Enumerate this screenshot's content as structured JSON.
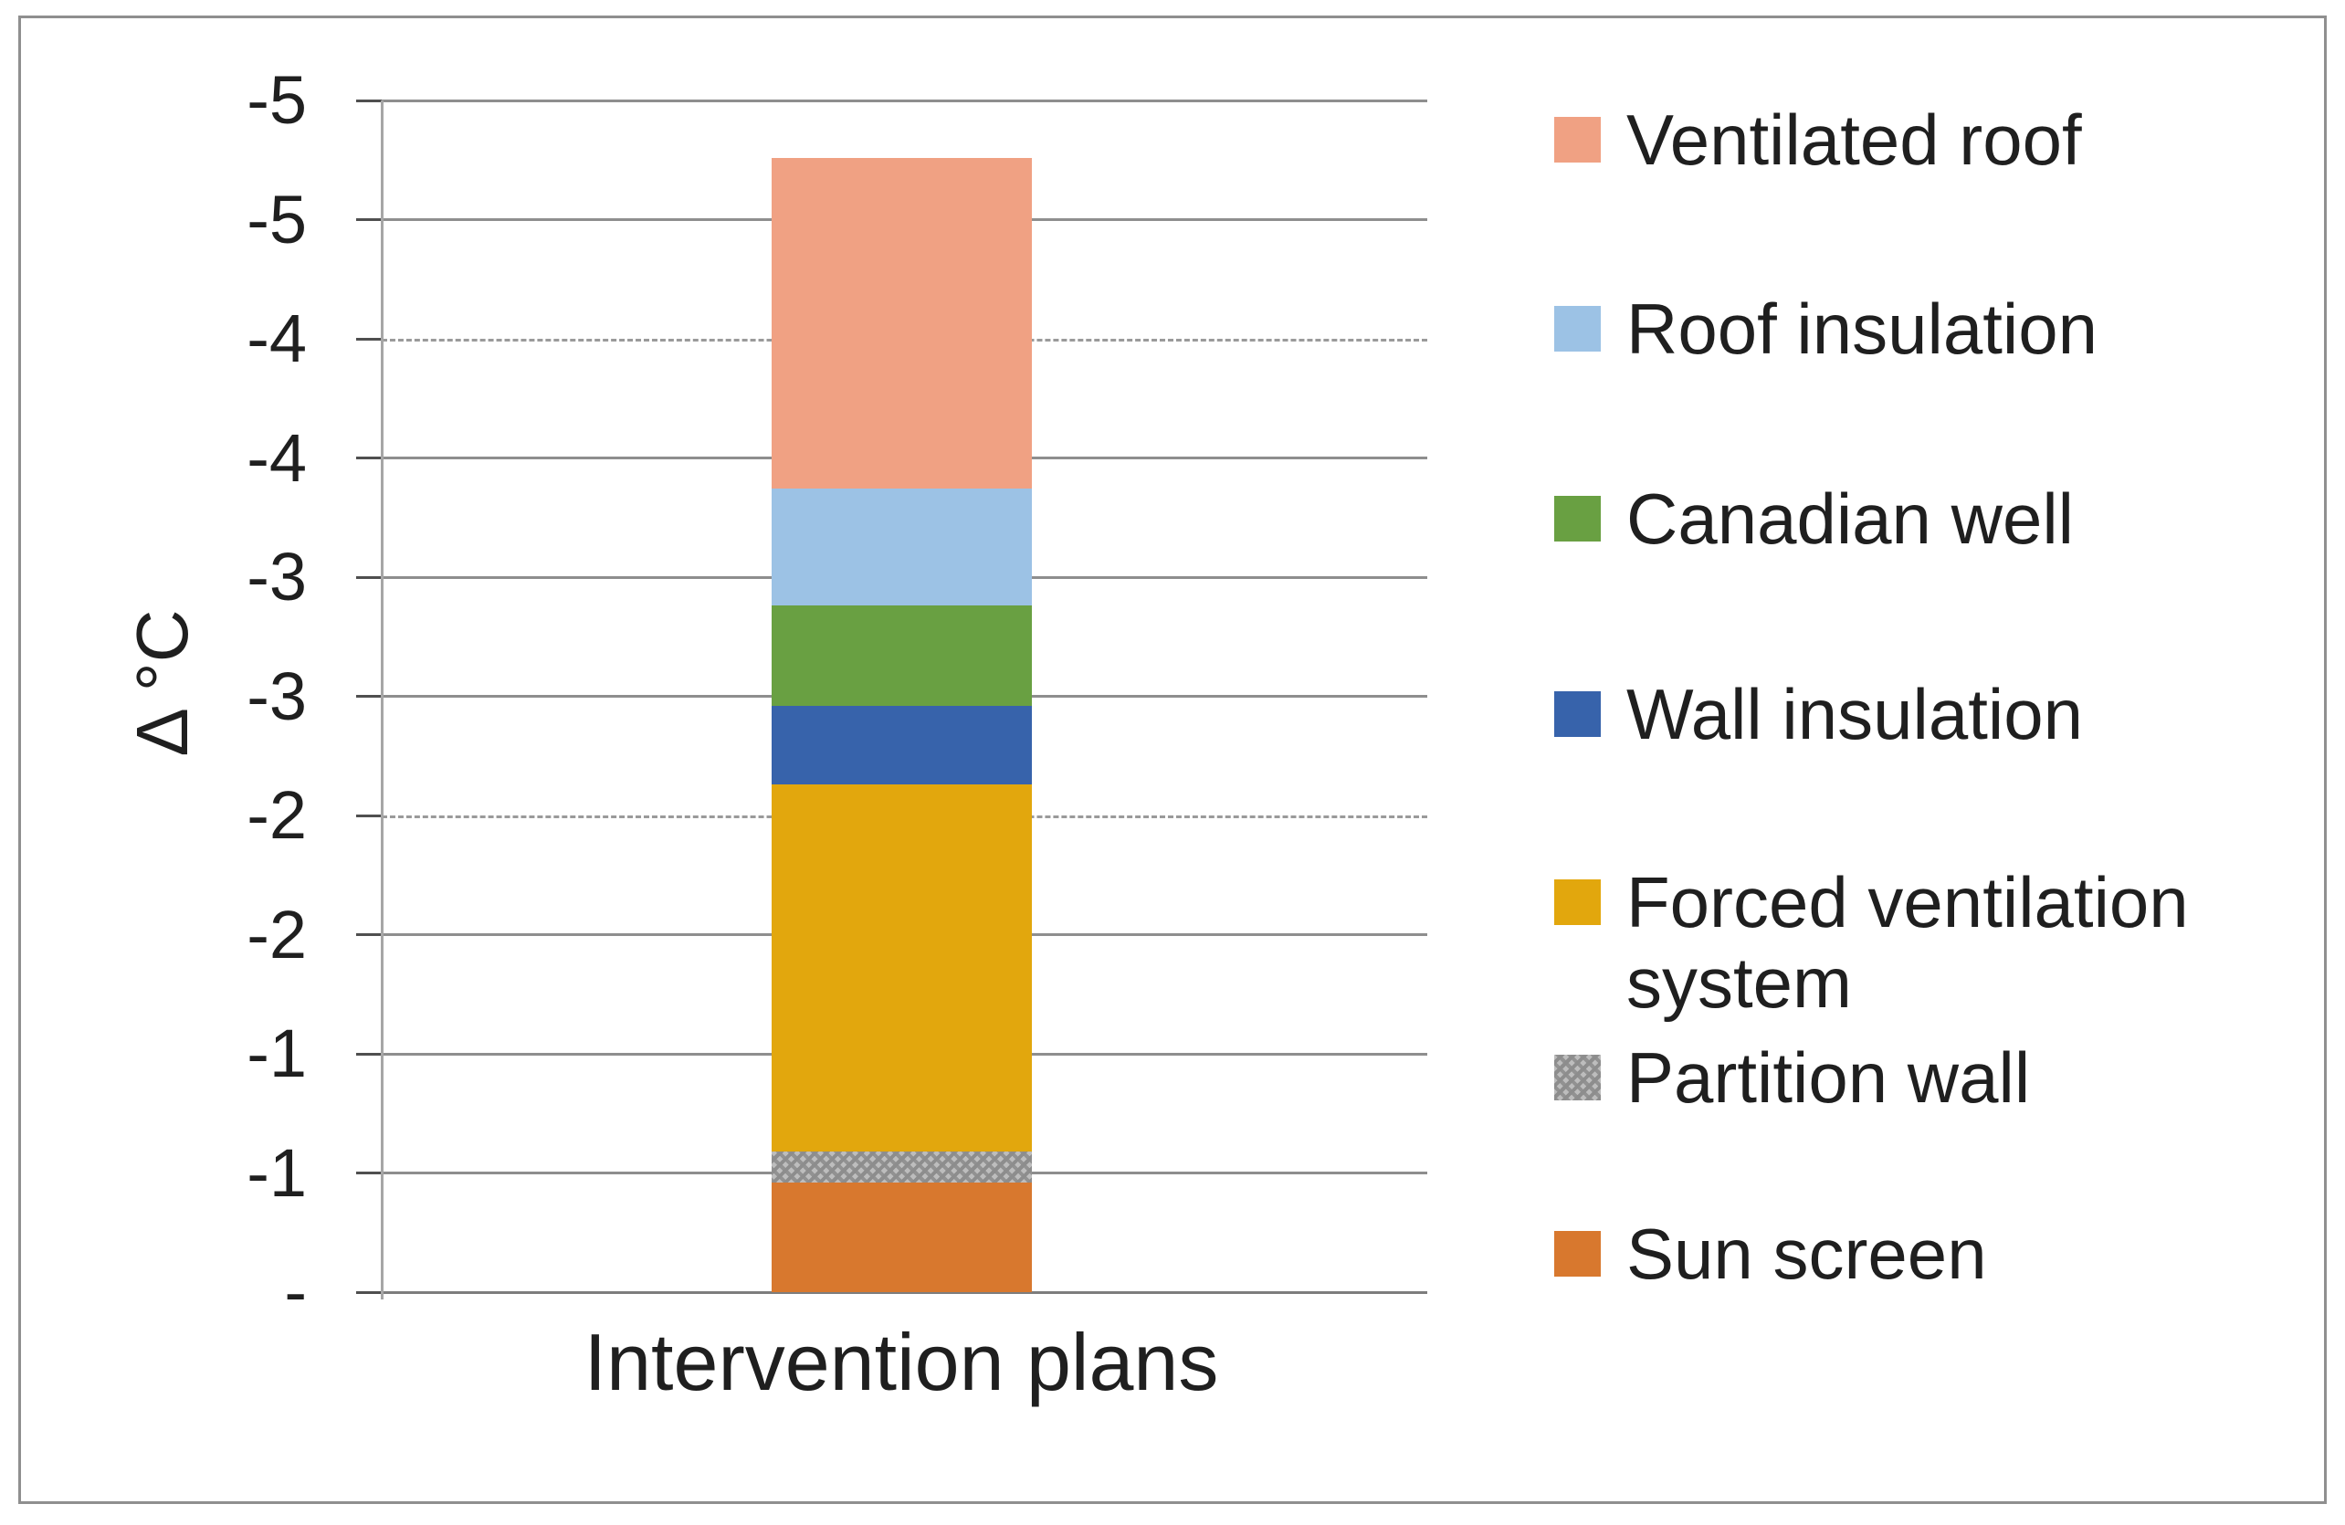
{
  "chart_data": {
    "type": "bar",
    "subtype": "stacked-column",
    "title": "",
    "xlabel": "Intervention plans",
    "ylabel": "Δ °C",
    "categories": [
      "Intervention plans"
    ],
    "axis": {
      "y_min": -5,
      "y_max": 0,
      "y_major_unit": 0.5,
      "grid": true,
      "ticks_top_to_bottom": [
        {
          "label": "-5",
          "value": -5.0,
          "gridline": "solid"
        },
        {
          "label": "-5",
          "value": -4.5,
          "gridline": "solid"
        },
        {
          "label": "-4",
          "value": -4.0,
          "gridline": "dashed"
        },
        {
          "label": "-4",
          "value": -3.5,
          "gridline": "solid"
        },
        {
          "label": "-3",
          "value": -3.0,
          "gridline": "solid"
        },
        {
          "label": "-3",
          "value": -2.5,
          "gridline": "solid"
        },
        {
          "label": "-2",
          "value": -2.0,
          "gridline": "dashed"
        },
        {
          "label": "-2",
          "value": -1.5,
          "gridline": "solid"
        },
        {
          "label": "-1",
          "value": -1.0,
          "gridline": "solid"
        },
        {
          "label": "-1",
          "value": -0.5,
          "gridline": "solid"
        },
        {
          "label": "-",
          "value": 0.0,
          "gridline": "solid"
        }
      ]
    },
    "series_bottom_to_top": [
      {
        "name": "Sun screen",
        "value": -0.46,
        "color": "#D8782E",
        "pattern": "solid"
      },
      {
        "name": "Partition wall",
        "value": -0.13,
        "color": "#ABABAB",
        "pattern": "diagonal-hatch"
      },
      {
        "name": "Forced ventilation system",
        "value": -1.54,
        "color": "#E2A70D",
        "pattern": "solid"
      },
      {
        "name": "Wall insulation",
        "value": -0.33,
        "color": "#3763AB",
        "pattern": "solid"
      },
      {
        "name": "Canadian well",
        "value": -0.42,
        "color": "#69A042",
        "pattern": "solid"
      },
      {
        "name": "Roof insulation",
        "value": -0.49,
        "color": "#9CC2E5",
        "pattern": "solid"
      },
      {
        "name": "Ventilated roof",
        "value": -1.39,
        "color": "#F0A183",
        "pattern": "solid"
      }
    ],
    "total": -4.76,
    "legend": {
      "position": "right",
      "items_top_to_bottom": [
        {
          "display": "Ventilated roof",
          "series": "Ventilated roof"
        },
        {
          "display": "Roof insulation",
          "series": "Roof insulation"
        },
        {
          "display": "Canadian well",
          "series": "Canadian well"
        },
        {
          "display": "Wall insulation",
          "series": "Wall insulation"
        },
        {
          "display": "Forced ventilation\nsystem",
          "series": "Forced ventilation system"
        },
        {
          "display": "Partition wall",
          "series": "Partition wall"
        },
        {
          "display": "Sun screen",
          "series": "Sun screen"
        }
      ]
    }
  },
  "style_colors": {
    "gridline": "#8e8e8e",
    "gridline_dashed": "#9a9a9a",
    "axis_line": "#a6a6a6",
    "baseline": "#7d7d7d",
    "tick_mark": "#4f4f4f",
    "text": "#1f1f1f",
    "outer_border": "#8f8f8f",
    "background": "#ffffff"
  }
}
